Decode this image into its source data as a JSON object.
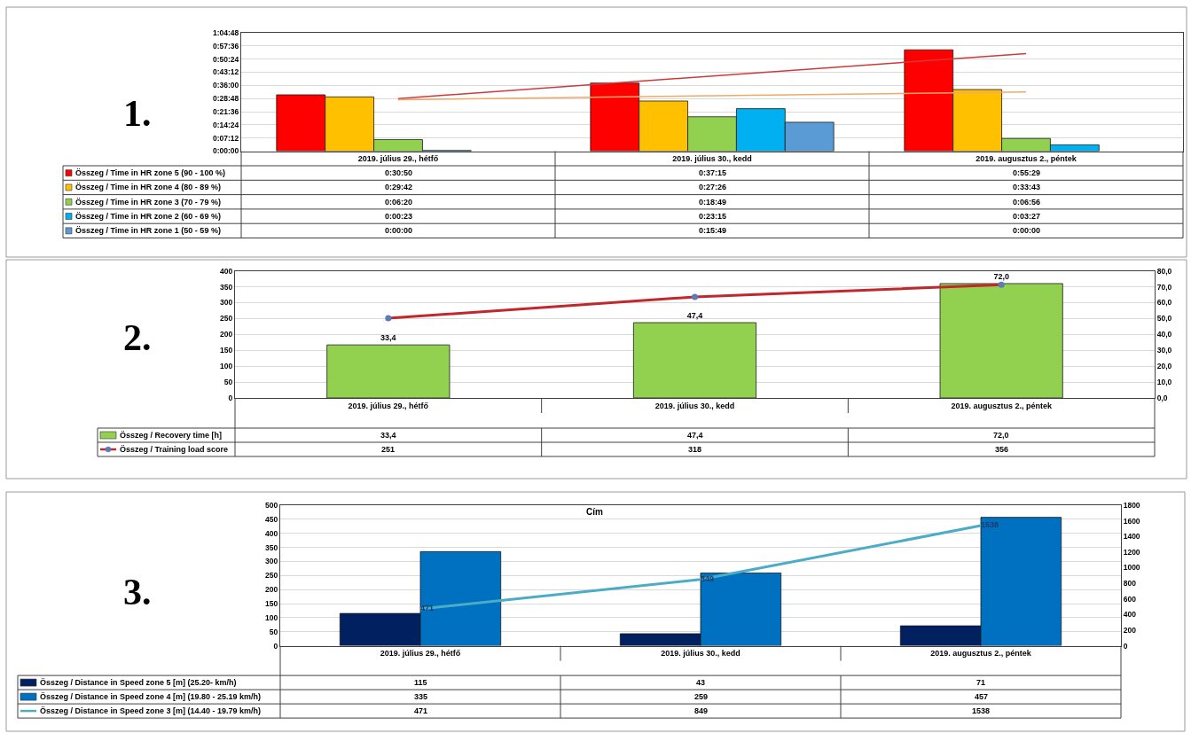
{
  "chart_data": [
    {
      "type": "bar",
      "annotations": [
        "1."
      ],
      "categories": [
        "2019. július 29., hétfő",
        "2019. július 30., kedd",
        "2019. augusztus 2., péntek"
      ],
      "series": [
        {
          "name": "Összeg / Time in HR zone 5 (90 - 100 %)",
          "color": "#ff0000",
          "values": [
            0.5139,
            0.6208,
            0.9247
          ],
          "value_labels": [
            "0:30:50",
            "0:37:15",
            "0:55:29"
          ]
        },
        {
          "name": "Összeg / Time in HR zone 4 (80 - 89 %)",
          "color": "#ffc000",
          "values": [
            0.495,
            0.4572,
            0.5619
          ],
          "value_labels": [
            "0:29:42",
            "0:27:26",
            "0:33:43"
          ]
        },
        {
          "name": "Összeg / Time in HR zone 3 (70 - 79 %)",
          "color": "#92d050",
          "values": [
            0.1056,
            0.3136,
            0.1156
          ],
          "value_labels": [
            "0:06:20",
            "0:18:49",
            "0:06:56"
          ]
        },
        {
          "name": "Összeg / Time in HR zone 2 (60 - 69 %)",
          "color": "#00b0f0",
          "values": [
            0.0064,
            0.3875,
            0.0575
          ],
          "value_labels": [
            "0:00:23",
            "0:23:15",
            "0:03:27"
          ]
        },
        {
          "name": "Összeg / Time in HR zone 1 (50 - 59 %)",
          "color": "#5b9bd5",
          "values": [
            0,
            0.2636,
            0
          ],
          "value_labels": [
            "0:00:00",
            "0:15:49",
            "0:00:00"
          ]
        },
        {
          "type": "line",
          "color": "#d0393b",
          "x": [
            "2019. július 29., hétfő",
            "2019. augusztus 2., péntek"
          ],
          "values": [
            0.48,
            0.89
          ]
        },
        {
          "type": "line",
          "color": "#f2a866",
          "x": [
            "2019. július 29., hétfő",
            "2019. augusztus 2., péntek"
          ],
          "values": [
            0.47,
            0.54
          ]
        }
      ],
      "ylim": [
        0,
        1.08
      ],
      "yticks": [
        {
          "value": 0,
          "label": "0:00:00"
        },
        {
          "value": 0.12,
          "label": "0:07:12"
        },
        {
          "value": 0.24,
          "label": "0:14:24"
        },
        {
          "value": 0.36,
          "label": "0:21:36"
        },
        {
          "value": 0.48,
          "label": "0:28:48"
        },
        {
          "value": 0.6,
          "label": "0:36:00"
        },
        {
          "value": 0.72,
          "label": "0:43:12"
        },
        {
          "value": 0.84,
          "label": "0:50:24"
        },
        {
          "value": 0.96,
          "label": "0:57:36"
        },
        {
          "value": 1.08,
          "label": "1:04:48"
        }
      ],
      "grid": "y",
      "legend": "bottom"
    },
    {
      "type": "bar",
      "annotations": [
        "2."
      ],
      "categories": [
        "2019. július 29., hétfő",
        "2019. július 30., kedd",
        "2019. augusztus 2., péntek"
      ],
      "series": [
        {
          "name": "Összeg / Recovery time [h]",
          "color": "#92d050",
          "axis": "y2",
          "values": [
            33.4,
            47.4,
            72.0
          ],
          "value_labels": [
            "33,4",
            "47,4",
            "72,0"
          ],
          "data_labels": true
        },
        {
          "name": "Összeg / Training load score",
          "type": "line",
          "color": "#c0282d",
          "colors": [
            "#5b7bbd",
            "#5b7bbd",
            "#5b7bbd"
          ],
          "values": [
            251,
            318,
            356
          ],
          "value_labels": [
            "251",
            "318",
            "356"
          ]
        }
      ],
      "ylim": [
        0,
        400
      ],
      "yticks": [
        0,
        50,
        100,
        150,
        200,
        250,
        300,
        350,
        400
      ],
      "y2lim": [
        0,
        80
      ],
      "y2ticks": [
        {
          "value": 0,
          "label": "0,0"
        },
        {
          "value": 10,
          "label": "10,0"
        },
        {
          "value": 20,
          "label": "20,0"
        },
        {
          "value": 30,
          "label": "30,0"
        },
        {
          "value": 40,
          "label": "40,0"
        },
        {
          "value": 50,
          "label": "50,0"
        },
        {
          "value": 60,
          "label": "60,0"
        },
        {
          "value": 70,
          "label": "70,0"
        },
        {
          "value": 80,
          "label": "80,0"
        }
      ],
      "grid": "y",
      "legend": "bottom",
      "marker": "circle"
    },
    {
      "type": "bar",
      "title": "Cím",
      "annotations": [
        "3."
      ],
      "categories": [
        "2019. július 29., hétfő",
        "2019. július 30., kedd",
        "2019. augusztus 2., péntek"
      ],
      "series": [
        {
          "name": "Összeg / Distance in Speed zone 5 [m] (25.20- km/h)",
          "color": "#002060",
          "values": [
            115,
            43,
            71
          ],
          "value_labels": [
            "115",
            "43",
            "71"
          ]
        },
        {
          "name": "Összeg / Distance in Speed zone 4 [m] (19.80 - 25.19 km/h)",
          "color": "#0070c0",
          "values": [
            335,
            259,
            457
          ],
          "value_labels": [
            "335",
            "259",
            "457"
          ]
        },
        {
          "name": "Összeg / Distance in Speed zone 3 [m] (14.40 - 19.79 km/h)",
          "type": "line",
          "axis": "y2",
          "color": "#4bacc6",
          "values": [
            471,
            849,
            1538
          ],
          "value_labels": [
            "471",
            "849",
            "1538"
          ],
          "data_labels": true
        }
      ],
      "ylim": [
        0,
        500
      ],
      "yticks": [
        0,
        50,
        100,
        150,
        200,
        250,
        300,
        350,
        400,
        450,
        500
      ],
      "y2lim": [
        0,
        1800
      ],
      "y2ticks": [
        0,
        200,
        400,
        600,
        800,
        1000,
        1200,
        1400,
        1600,
        1800
      ],
      "grid": "y",
      "legend": "bottom"
    }
  ]
}
